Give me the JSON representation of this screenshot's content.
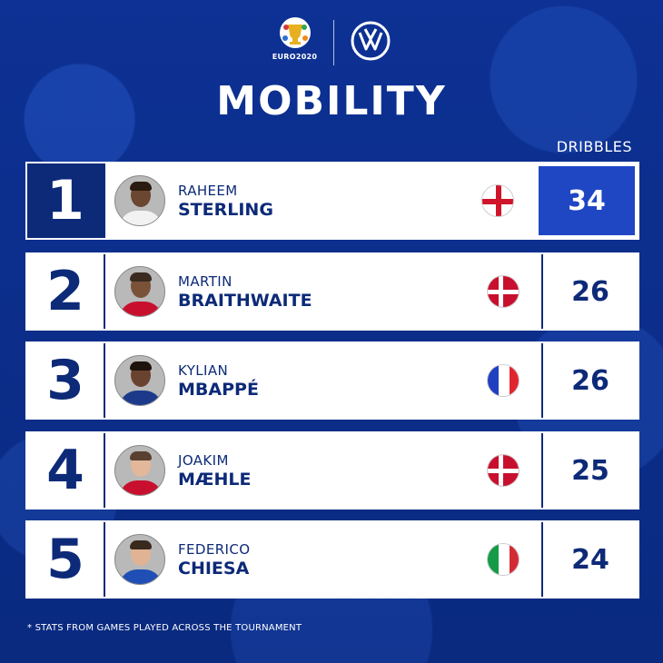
{
  "header": {
    "euro_logo_text": "EURO2020",
    "title": "MOBILITY",
    "column_label": "DRIBBLES"
  },
  "players": [
    {
      "rank": "1",
      "first": "RAHEEM",
      "last": "STERLING",
      "value": "34",
      "flag": "england-flag-icon"
    },
    {
      "rank": "2",
      "first": "MARTIN",
      "last": "BRAITHWAITE",
      "value": "26",
      "flag": "denmark-flag-icon"
    },
    {
      "rank": "3",
      "first": "KYLIAN",
      "last": "MBAPPÉ",
      "value": "26",
      "flag": "france-flag-icon"
    },
    {
      "rank": "4",
      "first": "JOAKIM",
      "last": "MÆHLE",
      "value": "25",
      "flag": "denmark-flag-icon"
    },
    {
      "rank": "5",
      "first": "FEDERICO",
      "last": "CHIESA",
      "value": "24",
      "flag": "italy-flag-icon"
    }
  ],
  "footnote": "* STATS FROM GAMES PLAYED ACROSS THE TOURNAMENT",
  "colors": {
    "background": "#0c2f8f",
    "navy": "#0d2a78",
    "highlight": "#1f47c4"
  }
}
